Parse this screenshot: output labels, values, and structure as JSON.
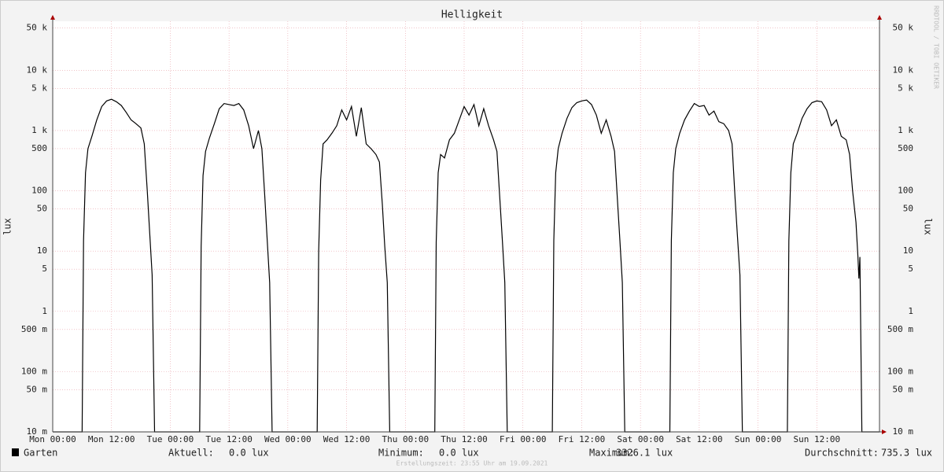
{
  "chart_data": {
    "type": "line",
    "title": "Helligkeit",
    "y_label": "lux",
    "watermark": "RRDTOOL / TOBI OETIKER",
    "footer": "Erstellungszeit: 23:55 Uhr am 19.09.2021",
    "log_y": true,
    "grid": true,
    "ylim": [
      0.01,
      65000
    ],
    "yticks": [
      {
        "value": 0.01,
        "label": "10 m"
      },
      {
        "value": 0.05,
        "label": "50 m"
      },
      {
        "value": 0.1,
        "label": "100 m"
      },
      {
        "value": 0.5,
        "label": "500 m"
      },
      1,
      5,
      10,
      50,
      100,
      500,
      {
        "value": 1000,
        "label": "1 k"
      },
      {
        "value": 5000,
        "label": "5 k"
      },
      {
        "value": 10000,
        "label": "10 k"
      },
      {
        "value": 50000,
        "label": "50 k"
      }
    ],
    "xlim": [
      0,
      168.8
    ],
    "xticks": [
      {
        "value": 0,
        "label": "Mon 00:00"
      },
      {
        "value": 12,
        "label": "Mon 12:00"
      },
      {
        "value": 24,
        "label": "Tue 00:00"
      },
      {
        "value": 36,
        "label": "Tue 12:00"
      },
      {
        "value": 48,
        "label": "Wed 00:00"
      },
      {
        "value": 60,
        "label": "Wed 12:00"
      },
      {
        "value": 72,
        "label": "Thu 00:00"
      },
      {
        "value": 84,
        "label": "Thu 12:00"
      },
      {
        "value": 96,
        "label": "Fri 00:00"
      },
      {
        "value": 108,
        "label": "Fri 12:00"
      },
      {
        "value": 120,
        "label": "Sat 00:00"
      },
      {
        "value": 132,
        "label": "Sat 12:00"
      },
      {
        "value": 144,
        "label": "Sun 00:00"
      },
      {
        "value": 156,
        "label": "Sun 12:00"
      }
    ],
    "x": [
      0,
      6,
      6.3,
      6.7,
      7.2,
      8,
      9,
      10,
      11,
      12,
      13,
      14,
      15,
      16,
      17,
      18,
      18.7,
      19.3,
      19.8,
      20.3,
      20.8,
      24,
      30,
      30.3,
      30.7,
      31.2,
      32,
      33,
      34,
      35,
      36,
      37,
      38,
      39,
      40,
      41,
      42,
      42.7,
      43.3,
      43.8,
      44.3,
      44.8,
      48,
      54,
      54.3,
      54.7,
      55.2,
      56,
      57,
      58,
      59,
      60,
      61,
      62,
      63,
      64,
      65,
      66,
      66.7,
      67.3,
      67.8,
      68.3,
      68.8,
      72,
      78,
      78.3,
      78.7,
      79.2,
      80,
      81,
      82,
      83,
      84,
      85,
      86,
      87,
      88,
      89,
      90,
      90.7,
      91.3,
      91.8,
      92.3,
      92.8,
      96,
      102,
      102.3,
      102.7,
      103.2,
      104,
      105,
      106,
      107,
      108,
      109,
      110,
      111,
      112,
      113,
      114,
      114.7,
      115.3,
      115.8,
      116.3,
      116.8,
      120,
      126,
      126.3,
      126.7,
      127.2,
      128,
      129,
      130,
      131,
      132,
      133,
      134,
      135,
      136,
      137,
      138,
      138.7,
      139.3,
      139.8,
      140.3,
      140.8,
      144,
      150,
      150.3,
      150.7,
      151.2,
      152,
      153,
      154,
      155,
      156,
      157,
      158,
      159,
      160,
      161,
      162,
      162.7,
      163.3,
      164,
      164.4,
      164.6,
      164.8,
      165.2,
      168.8
    ],
    "series": [
      {
        "name": "Garten",
        "color": "#000000",
        "values": [
          0,
          0,
          15,
          200,
          500,
          800,
          1500,
          2500,
          3100,
          3300,
          3000,
          2600,
          2000,
          1500,
          1300,
          1100,
          600,
          100,
          20,
          4,
          0,
          0,
          0,
          12,
          180,
          450,
          750,
          1300,
          2300,
          2800,
          2700,
          2600,
          2800,
          2200,
          1200,
          500,
          1000,
          500,
          80,
          15,
          3,
          0,
          0,
          0,
          10,
          150,
          600,
          700,
          900,
          1200,
          2200,
          1500,
          2500,
          800,
          2400,
          600,
          500,
          400,
          300,
          60,
          12,
          3,
          0,
          0,
          0,
          14,
          200,
          400,
          350,
          700,
          900,
          1500,
          2500,
          1800,
          2700,
          1200,
          2300,
          1200,
          700,
          450,
          70,
          15,
          3,
          0,
          0,
          0,
          15,
          200,
          500,
          900,
          1600,
          2400,
          2900,
          3100,
          3200,
          2700,
          1800,
          900,
          1500,
          800,
          450,
          70,
          15,
          3,
          0,
          0,
          0,
          15,
          200,
          500,
          900,
          1500,
          2100,
          2800,
          2500,
          2600,
          1800,
          2100,
          1400,
          1300,
          1000,
          600,
          80,
          18,
          4,
          0,
          0,
          0,
          15,
          200,
          600,
          900,
          1600,
          2300,
          2900,
          3100,
          3000,
          2200,
          1200,
          1500,
          800,
          700,
          400,
          100,
          30,
          8,
          3.5,
          8,
          0,
          0
        ]
      }
    ],
    "stats": [
      {
        "label": "Aktuell:",
        "text": "0.0 lux"
      },
      {
        "label": "Minimum:",
        "text": "0.0 lux"
      },
      {
        "label": "Maximum:",
        "text": "3326.1 lux"
      },
      {
        "label": "Durchschnitt:",
        "text": "735.3 lux"
      }
    ]
  }
}
